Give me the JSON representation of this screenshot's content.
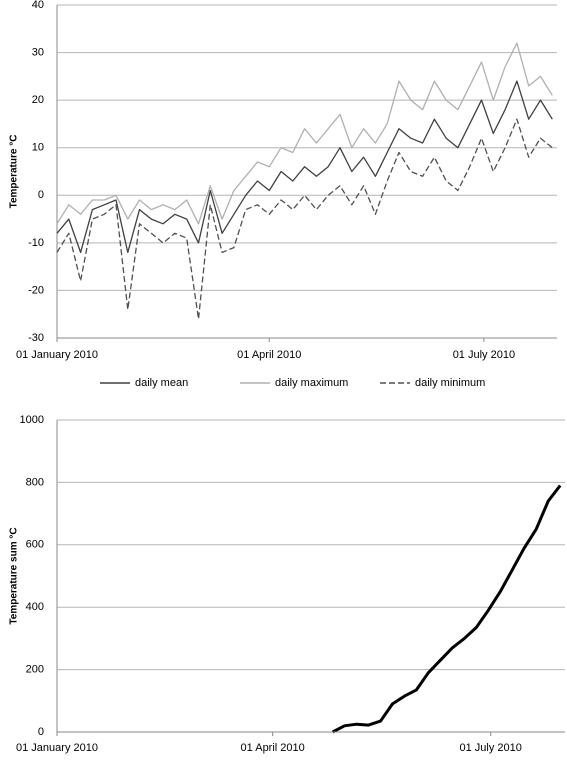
{
  "chart_data": [
    {
      "type": "line",
      "ylabel": "Temperature °C",
      "x": [
        "2010-01-01",
        "2010-01-06",
        "2010-01-11",
        "2010-01-16",
        "2010-01-21",
        "2010-01-26",
        "2010-01-31",
        "2010-02-05",
        "2010-02-10",
        "2010-02-15",
        "2010-02-20",
        "2010-02-25",
        "2010-03-02",
        "2010-03-07",
        "2010-03-12",
        "2010-03-17",
        "2010-03-22",
        "2010-03-27",
        "2010-04-01",
        "2010-04-06",
        "2010-04-11",
        "2010-04-16",
        "2010-04-21",
        "2010-04-26",
        "2010-05-01",
        "2010-05-06",
        "2010-05-11",
        "2010-05-16",
        "2010-05-21",
        "2010-05-26",
        "2010-05-31",
        "2010-06-05",
        "2010-06-10",
        "2010-06-15",
        "2010-06-20",
        "2010-06-25",
        "2010-06-30",
        "2010-07-05",
        "2010-07-10",
        "2010-07-15",
        "2010-07-20",
        "2010-07-25",
        "2010-07-30"
      ],
      "series": [
        {
          "name": "daily mean",
          "color": "#404040",
          "style": "solid",
          "values": [
            -8,
            -5,
            -12,
            -3,
            -2,
            -1,
            -12,
            -3,
            -5,
            -6,
            -4,
            -5,
            -10,
            1,
            -8,
            -4,
            0,
            3,
            1,
            5,
            3,
            6,
            4,
            6,
            10,
            5,
            8,
            4,
            9,
            14,
            12,
            11,
            16,
            12,
            10,
            15,
            20,
            13,
            18,
            24,
            16,
            20,
            16
          ]
        },
        {
          "name": "daily maximum",
          "color": "#b0b0b0",
          "style": "solid",
          "values": [
            -6,
            -2,
            -4,
            -1,
            -1,
            0,
            -5,
            -1,
            -3,
            -2,
            -3,
            -1,
            -6,
            2,
            -5,
            1,
            4,
            7,
            6,
            10,
            9,
            14,
            11,
            14,
            17,
            10,
            14,
            11,
            15,
            24,
            20,
            18,
            24,
            20,
            18,
            23,
            28,
            20,
            27,
            32,
            23,
            25,
            21
          ]
        },
        {
          "name": "daily minimum",
          "color": "#505050",
          "style": "dashed",
          "values": [
            -12,
            -8,
            -18,
            -5,
            -4,
            -2,
            -24,
            -6,
            -8,
            -10,
            -8,
            -9,
            -26,
            -2,
            -12,
            -11,
            -3,
            -2,
            -4,
            -1,
            -3,
            0,
            -3,
            0,
            2,
            -2,
            2,
            -4,
            3,
            9,
            5,
            4,
            8,
            3,
            1,
            6,
            12,
            5,
            10,
            16,
            8,
            12,
            10
          ]
        }
      ],
      "xlim": [
        "2010-01-01",
        "2010-08-01"
      ],
      "xticks": [
        {
          "value": "2010-01-01",
          "label": "01 January 2010"
        },
        {
          "value": "2010-04-01",
          "label": "01 April 2010"
        },
        {
          "value": "2010-07-01",
          "label": "01 July 2010"
        }
      ],
      "ylim": [
        -30,
        40
      ],
      "yticks": [
        -30,
        -20,
        -10,
        0,
        10,
        20,
        30,
        40
      ],
      "grid": true,
      "legend": "bottom"
    },
    {
      "type": "line",
      "ylabel": "Temperature sum °C",
      "x": [
        "2010-01-01",
        "2010-01-06",
        "2010-01-11",
        "2010-01-16",
        "2010-01-21",
        "2010-01-26",
        "2010-01-31",
        "2010-02-05",
        "2010-02-10",
        "2010-02-15",
        "2010-02-20",
        "2010-02-25",
        "2010-03-02",
        "2010-03-07",
        "2010-03-12",
        "2010-03-17",
        "2010-03-22",
        "2010-03-27",
        "2010-04-01",
        "2010-04-06",
        "2010-04-11",
        "2010-04-16",
        "2010-04-21",
        "2010-04-26",
        "2010-05-01",
        "2010-05-06",
        "2010-05-11",
        "2010-05-16",
        "2010-05-21",
        "2010-05-26",
        "2010-05-31",
        "2010-06-05",
        "2010-06-10",
        "2010-06-15",
        "2010-06-20",
        "2010-06-25",
        "2010-06-30",
        "2010-07-05",
        "2010-07-10",
        "2010-07-15",
        "2010-07-20",
        "2010-07-25",
        "2010-07-30"
      ],
      "series": [
        {
          "color": "#000000",
          "style": "solid",
          "linewidth": 3,
          "values": [
            null,
            null,
            null,
            null,
            null,
            null,
            null,
            null,
            null,
            null,
            null,
            null,
            null,
            null,
            null,
            null,
            null,
            null,
            null,
            null,
            null,
            null,
            null,
            0,
            20,
            25,
            22,
            35,
            90,
            115,
            135,
            190,
            230,
            270,
            300,
            335,
            390,
            450,
            520,
            590,
            650,
            740,
            790
          ]
        }
      ],
      "xlim": [
        "2010-01-01",
        "2010-08-01"
      ],
      "xticks": [
        {
          "value": "2010-01-01",
          "label": "01 January 2010"
        },
        {
          "value": "2010-04-01",
          "label": "01 April 2010"
        },
        {
          "value": "2010-07-01",
          "label": "01 July 2010"
        }
      ],
      "ylim": [
        0,
        1000
      ],
      "yticks": [
        0,
        200,
        400,
        600,
        800,
        1000
      ],
      "grid": true
    }
  ]
}
